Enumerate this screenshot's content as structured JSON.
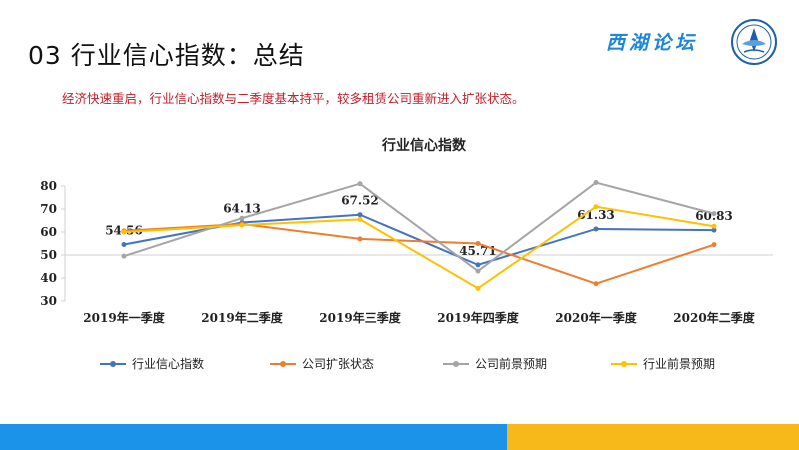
{
  "slide": {
    "title": "03 行业信心指数：总结",
    "subtitle": "经济快速重启，行业信心指数与二季度基本持平，较多租赁公司重新进入扩张状态。",
    "logo_text": "西湖论坛"
  },
  "chart_data": {
    "type": "line",
    "title": "行业信心指数",
    "categories": [
      "2019年一季度",
      "2019年二季度",
      "2019年三季度",
      "2019年四季度",
      "2020年一季度",
      "2020年二季度"
    ],
    "ylim": [
      30,
      80
    ],
    "yticks": [
      30,
      40,
      50,
      60,
      70,
      80
    ],
    "grid": false,
    "legend_position": "bottom",
    "series": [
      {
        "name": "行业信心指数",
        "color": "#4472c4",
        "values": [
          54.56,
          64.13,
          67.52,
          45.71,
          61.33,
          60.83
        ],
        "labels": [
          "54.56",
          "64.13",
          "67.52",
          "45.71",
          "61.33",
          "60.83"
        ]
      },
      {
        "name": "公司扩张状态",
        "color": "#ed7d31",
        "values": [
          60.5,
          63.5,
          57,
          55,
          37.5,
          54.5
        ]
      },
      {
        "name": "公司前景预期",
        "color": "#a5a5a5",
        "values": [
          49.5,
          66,
          81,
          43,
          81.5,
          68
        ]
      },
      {
        "name": "行业前景预期",
        "color": "#ffc000",
        "values": [
          60,
          63,
          65.5,
          35.5,
          71,
          62.5
        ]
      }
    ]
  }
}
